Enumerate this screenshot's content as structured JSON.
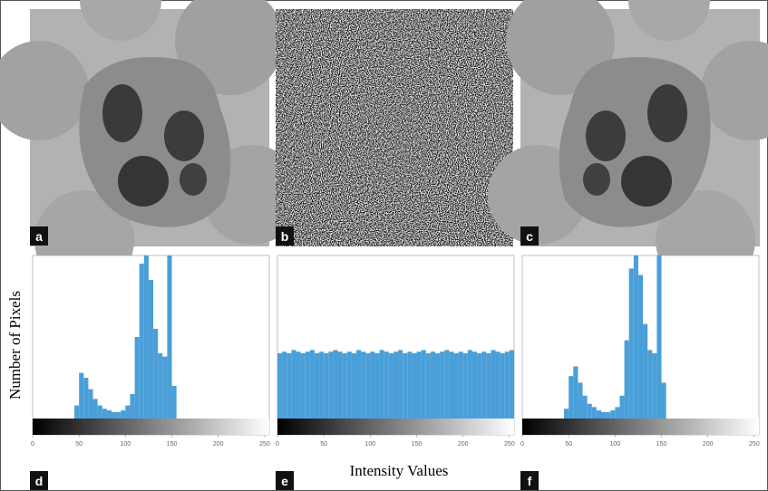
{
  "figure": {
    "ylabel": "Number of Pixels",
    "xlabel": "Intensity Values",
    "panel_labels": [
      "a",
      "b",
      "c",
      "d",
      "e",
      "f"
    ]
  },
  "chart_data": [
    {
      "type": "histogram",
      "color": "#4a9fd8",
      "xlim": [
        0,
        255
      ],
      "ylim": [
        0,
        100
      ],
      "xticks": [
        0,
        50,
        100,
        150,
        200,
        250
      ],
      "bins": [
        0,
        5,
        10,
        15,
        20,
        25,
        30,
        35,
        40,
        45,
        50,
        55,
        60,
        65,
        70,
        75,
        80,
        85,
        90,
        95,
        100,
        105,
        110,
        115,
        120,
        125,
        130,
        135,
        140,
        145,
        150,
        155,
        160,
        165,
        170,
        175,
        180,
        185,
        190,
        195,
        200,
        205,
        210,
        215,
        220,
        225,
        230,
        235,
        240,
        245,
        250,
        255
      ],
      "counts": [
        0,
        0,
        0,
        0,
        0,
        0,
        0,
        0,
        0,
        8,
        28,
        25,
        18,
        12,
        8,
        6,
        5,
        4,
        4,
        5,
        8,
        15,
        50,
        95,
        100,
        85,
        55,
        40,
        38,
        100,
        20,
        0,
        0,
        0,
        0,
        0,
        0,
        0,
        0,
        0,
        0,
        0,
        0,
        0,
        0,
        0,
        0,
        0,
        0,
        0,
        0
      ]
    },
    {
      "type": "histogram",
      "color": "#4a9fd8",
      "xlim": [
        0,
        255
      ],
      "ylim": [
        0,
        100
      ],
      "xticks": [
        0,
        50,
        100,
        150,
        200,
        250
      ],
      "bins": [
        0,
        5,
        10,
        15,
        20,
        25,
        30,
        35,
        40,
        45,
        50,
        55,
        60,
        65,
        70,
        75,
        80,
        85,
        90,
        95,
        100,
        105,
        110,
        115,
        120,
        125,
        130,
        135,
        140,
        145,
        150,
        155,
        160,
        165,
        170,
        175,
        180,
        185,
        190,
        195,
        200,
        205,
        210,
        215,
        220,
        225,
        230,
        235,
        240,
        245,
        250,
        255
      ],
      "counts": [
        40,
        41,
        40,
        42,
        41,
        40,
        41,
        42,
        40,
        41,
        40,
        41,
        42,
        41,
        40,
        41,
        40,
        42,
        41,
        40,
        41,
        40,
        42,
        41,
        40,
        41,
        42,
        40,
        41,
        40,
        41,
        42,
        40,
        41,
        40,
        41,
        42,
        41,
        40,
        41,
        40,
        42,
        41,
        40,
        41,
        40,
        42,
        41,
        40,
        41,
        42
      ]
    },
    {
      "type": "histogram",
      "color": "#4a9fd8",
      "xlim": [
        0,
        255
      ],
      "ylim": [
        0,
        100
      ],
      "xticks": [
        0,
        50,
        100,
        150,
        200,
        250
      ],
      "bins": [
        0,
        5,
        10,
        15,
        20,
        25,
        30,
        35,
        40,
        45,
        50,
        55,
        60,
        65,
        70,
        75,
        80,
        85,
        90,
        95,
        100,
        105,
        110,
        115,
        120,
        125,
        130,
        135,
        140,
        145,
        150,
        155,
        160,
        165,
        170,
        175,
        180,
        185,
        190,
        195,
        200,
        205,
        210,
        215,
        220,
        225,
        230,
        235,
        240,
        245,
        250,
        255
      ],
      "counts": [
        0,
        0,
        0,
        0,
        0,
        0,
        0,
        0,
        0,
        6,
        26,
        32,
        22,
        14,
        9,
        7,
        5,
        4,
        4,
        5,
        7,
        14,
        48,
        92,
        100,
        88,
        58,
        42,
        40,
        100,
        22,
        0,
        0,
        0,
        0,
        0,
        0,
        0,
        0,
        0,
        0,
        0,
        0,
        0,
        0,
        0,
        0,
        0,
        0,
        0,
        0
      ]
    }
  ]
}
